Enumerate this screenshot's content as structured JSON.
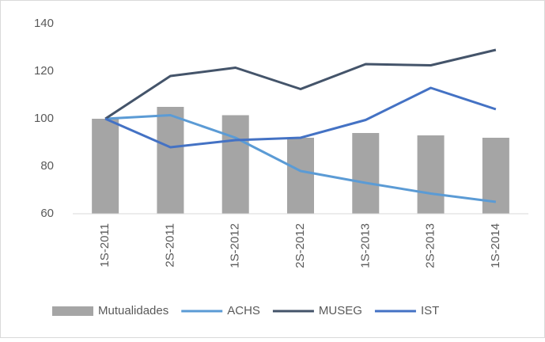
{
  "chart_data": {
    "type": "bar_line",
    "categories": [
      "1S-2011",
      "2S-2011",
      "1S-2012",
      "2S-2012",
      "1S-2013",
      "2S-2013",
      "1S-2014"
    ],
    "series": [
      {
        "name": "Mutualidades",
        "type": "bar",
        "color": "#a5a5a5",
        "values": [
          100,
          105,
          101.5,
          92,
          94,
          93,
          92
        ]
      },
      {
        "name": "ACHS",
        "type": "line",
        "color": "#5b9bd5",
        "values": [
          100,
          101.5,
          92,
          78,
          73,
          68.5,
          65
        ]
      },
      {
        "name": "MUSEG",
        "type": "line",
        "color": "#44546a",
        "values": [
          100,
          118,
          121.5,
          112.5,
          123,
          122.5,
          129
        ]
      },
      {
        "name": "IST",
        "type": "line",
        "color": "#4472c4",
        "values": [
          100,
          88,
          91,
          92,
          99.5,
          113,
          104
        ]
      }
    ],
    "ylim": [
      60,
      140
    ],
    "yticks": [
      60,
      80,
      100,
      120,
      140
    ],
    "grid": false,
    "legend": "bottom"
  }
}
